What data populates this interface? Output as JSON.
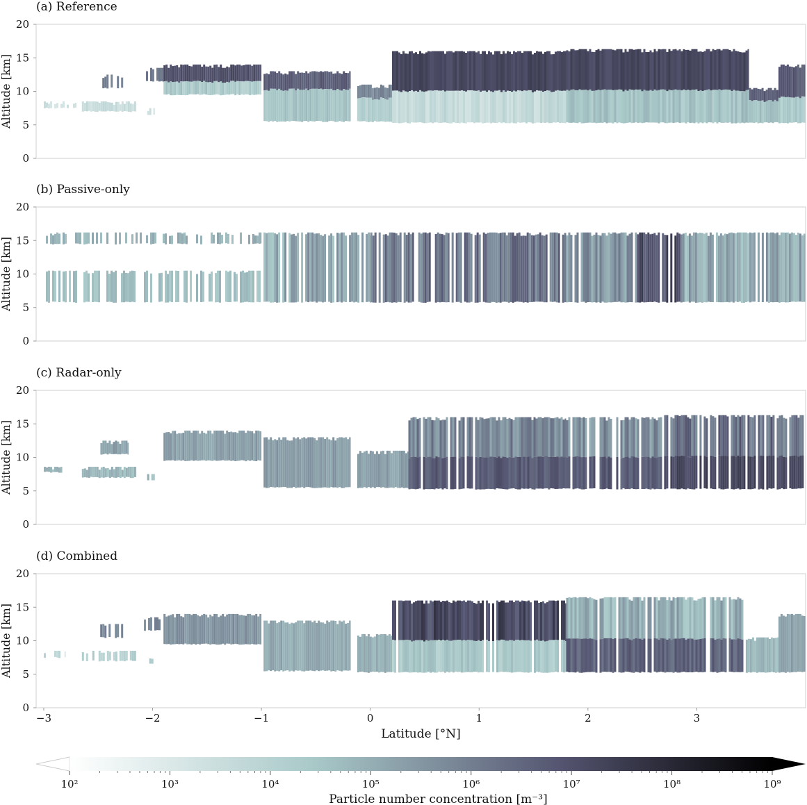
{
  "chart_data": {
    "type": "heatmap",
    "panels": [
      {
        "title": "(a) Reference",
        "ylabel": "Altitude [km]",
        "ylim": [
          0,
          20
        ],
        "yticks": [
          "0",
          "5",
          "10",
          "15",
          "20"
        ],
        "clouds": [
          {
            "lat": [
              -3.0,
              -2.7
            ],
            "alt": [
              7.5,
              8.5
            ],
            "level": 3.0,
            "style": "sparse"
          },
          {
            "lat": [
              -2.65,
              -2.15
            ],
            "alt": [
              7.0,
              8.5
            ],
            "level": 3.2,
            "style": "solid"
          },
          {
            "lat": [
              -2.05,
              -1.98
            ],
            "alt": [
              6.5,
              7.5
            ],
            "level": 3.2,
            "style": "sparse"
          },
          {
            "lat": [
              -2.5,
              -2.27
            ],
            "alt": [
              10.5,
              12.5
            ],
            "level": 5.8,
            "style": "sparse"
          },
          {
            "lat": [
              -2.08,
              -1.9
            ],
            "alt": [
              11.5,
              13.5
            ],
            "level": 5.8,
            "style": "sparse"
          },
          {
            "lat": [
              -1.9,
              -1.0
            ],
            "alt": [
              9.5,
              14.0
            ],
            "level": 6.8,
            "baseLevel": 4.0,
            "style": "solid"
          },
          {
            "lat": [
              -0.98,
              -0.18
            ],
            "alt": [
              5.5,
              13.0
            ],
            "level": 4.2,
            "topLevel": 6.4,
            "style": "solid"
          },
          {
            "lat": [
              -0.12,
              0.2
            ],
            "alt": [
              5.5,
              11.0
            ],
            "level": 3.8,
            "topLevel": 5.5,
            "style": "solid"
          },
          {
            "lat": [
              0.2,
              1.8
            ],
            "alt": [
              5.3,
              16.0
            ],
            "level": 7.0,
            "baseLevel": 3.3,
            "style": "solid"
          },
          {
            "lat": [
              1.8,
              3.48
            ],
            "alt": [
              5.3,
              16.3
            ],
            "level": 7.0,
            "baseLevel": 4.2,
            "style": "solid"
          },
          {
            "lat": [
              3.48,
              3.75
            ],
            "alt": [
              5.3,
              10.5
            ],
            "level": 4.2,
            "topLevel": 6.5,
            "style": "solid"
          },
          {
            "lat": [
              3.75,
              4.0
            ],
            "alt": [
              5.3,
              14.0
            ],
            "level": 6.5,
            "baseLevel": 4.0,
            "style": "solid"
          }
        ]
      },
      {
        "title": "(b) Passive-only",
        "ylabel": "Altitude [km]",
        "ylim": [
          0,
          20
        ],
        "yticks": [
          "0",
          "5",
          "10",
          "15",
          "20"
        ],
        "clouds": [
          {
            "lat": [
              -3.0,
              -1.0
            ],
            "alt": [
              14.5,
              16.2
            ],
            "level": 4.6,
            "style": "sparse"
          },
          {
            "lat": [
              -3.0,
              -1.0
            ],
            "alt": [
              5.8,
              10.5
            ],
            "level": 4.3,
            "style": "sparse"
          },
          {
            "lat": [
              -1.0,
              0.0
            ],
            "alt": [
              5.8,
              16.2
            ],
            "level": 4.8,
            "style": "streaky"
          },
          {
            "lat": [
              0.0,
              1.8
            ],
            "alt": [
              5.8,
              16.2
            ],
            "level": 5.9,
            "style": "streaky"
          },
          {
            "lat": [
              1.8,
              2.45
            ],
            "alt": [
              5.8,
              16.2
            ],
            "level": 5.2,
            "style": "streaky"
          },
          {
            "lat": [
              2.45,
              2.85
            ],
            "alt": [
              5.8,
              16.2
            ],
            "level": 6.8,
            "style": "streaky"
          },
          {
            "lat": [
              2.85,
              4.0
            ],
            "alt": [
              5.8,
              16.2
            ],
            "level": 4.8,
            "style": "streaky"
          }
        ]
      },
      {
        "title": "(c) Radar-only",
        "ylabel": "Altitude [km]",
        "ylim": [
          0,
          20
        ],
        "yticks": [
          "0",
          "5",
          "10",
          "15",
          "20"
        ],
        "clouds": [
          {
            "lat": [
              -3.0,
              -2.83
            ],
            "alt": [
              7.8,
              8.6
            ],
            "level": 4.5,
            "style": "solid"
          },
          {
            "lat": [
              -2.65,
              -2.15
            ],
            "alt": [
              7.0,
              8.6
            ],
            "level": 4.5,
            "style": "solid"
          },
          {
            "lat": [
              -2.05,
              -1.98
            ],
            "alt": [
              6.5,
              7.5
            ],
            "level": 4.5,
            "style": "sparse"
          },
          {
            "lat": [
              -2.48,
              -2.22
            ],
            "alt": [
              10.5,
              12.5
            ],
            "level": 5.0,
            "style": "solid"
          },
          {
            "lat": [
              -1.9,
              -1.0
            ],
            "alt": [
              9.5,
              14.0
            ],
            "level": 5.0,
            "style": "solid"
          },
          {
            "lat": [
              -0.98,
              -0.18
            ],
            "alt": [
              5.5,
              13.0
            ],
            "level": 5.1,
            "style": "solid"
          },
          {
            "lat": [
              -0.12,
              0.35
            ],
            "alt": [
              5.5,
              11.0
            ],
            "level": 5.0,
            "style": "solid"
          },
          {
            "lat": [
              0.35,
              1.8
            ],
            "alt": [
              5.3,
              16.0
            ],
            "level": 5.5,
            "baseLevel": 6.5,
            "style": "streaky"
          },
          {
            "lat": [
              1.8,
              2.7
            ],
            "alt": [
              5.3,
              16.0
            ],
            "level": 5.3,
            "baseLevel": 6.5,
            "style": "streaky"
          },
          {
            "lat": [
              2.7,
              4.0
            ],
            "alt": [
              5.3,
              16.3
            ],
            "level": 6.0,
            "baseLevel": 7.0,
            "style": "streaky"
          }
        ]
      },
      {
        "title": "(d) Combined",
        "ylabel": "Altitude [km]",
        "ylim": [
          0,
          20
        ],
        "yticks": [
          "0",
          "5",
          "10",
          "15",
          "20"
        ],
        "clouds": [
          {
            "lat": [
              -3.0,
              -2.8
            ],
            "alt": [
              7.5,
              8.5
            ],
            "level": 3.5,
            "style": "sparse"
          },
          {
            "lat": [
              -2.65,
              -2.1
            ],
            "alt": [
              7.0,
              8.5
            ],
            "level": 3.8,
            "style": "sparse"
          },
          {
            "lat": [
              -2.05,
              -1.98
            ],
            "alt": [
              6.5,
              7.5
            ],
            "level": 3.8,
            "style": "sparse"
          },
          {
            "lat": [
              -2.5,
              -2.27
            ],
            "alt": [
              10.5,
              12.5
            ],
            "level": 5.5,
            "style": "sparse"
          },
          {
            "lat": [
              -2.08,
              -1.9
            ],
            "alt": [
              11.5,
              13.5
            ],
            "level": 5.5,
            "style": "sparse"
          },
          {
            "lat": [
              -1.9,
              -1.0
            ],
            "alt": [
              9.5,
              14.0
            ],
            "level": 5.3,
            "style": "solid"
          },
          {
            "lat": [
              -0.98,
              -0.18
            ],
            "alt": [
              5.5,
              13.0
            ],
            "level": 4.8,
            "style": "solid"
          },
          {
            "lat": [
              -0.12,
              0.2
            ],
            "alt": [
              5.3,
              11.0
            ],
            "level": 4.6,
            "style": "solid"
          },
          {
            "lat": [
              0.2,
              1.8
            ],
            "alt": [
              5.3,
              16.0
            ],
            "level": 7.0,
            "baseLevel": 4.0,
            "style": "streaky"
          },
          {
            "lat": [
              1.8,
              3.45
            ],
            "alt": [
              5.3,
              16.5
            ],
            "level": 4.6,
            "baseLevel": 6.3,
            "style": "streaky"
          },
          {
            "lat": [
              3.45,
              3.75
            ],
            "alt": [
              5.3,
              10.5
            ],
            "level": 4.5,
            "style": "solid"
          },
          {
            "lat": [
              3.75,
              4.0
            ],
            "alt": [
              5.3,
              14.0
            ],
            "level": 5.0,
            "style": "solid"
          }
        ]
      }
    ],
    "xlabel": "Latitude [°N]",
    "xlim": [
      -3.07,
      4.0
    ],
    "xticks": [
      {
        "value": -3,
        "label": "−3"
      },
      {
        "value": -2,
        "label": "−2"
      },
      {
        "value": -1,
        "label": "−1"
      },
      {
        "value": 0,
        "label": "0"
      },
      {
        "value": 1,
        "label": "1"
      },
      {
        "value": 2,
        "label": "2"
      },
      {
        "value": 3,
        "label": "3"
      }
    ],
    "colorbar": {
      "label": "Particle number concentration [m⁻³]",
      "scale": "log",
      "range_exponent": [
        1.65,
        9.15
      ],
      "extend": "both",
      "ticks": [
        {
          "exponent": 2,
          "label": "10²"
        },
        {
          "exponent": 3,
          "label": "10³"
        },
        {
          "exponent": 4,
          "label": "10⁴"
        },
        {
          "exponent": 5,
          "label": "10⁵"
        },
        {
          "exponent": 6,
          "label": "10⁶"
        },
        {
          "exponent": 7,
          "label": "10⁷"
        },
        {
          "exponent": 8,
          "label": "10⁸"
        },
        {
          "exponent": 9,
          "label": "10⁹"
        }
      ],
      "colors": [
        "#ffffff",
        "#a8c8c8",
        "#545470",
        "#000000"
      ]
    }
  }
}
